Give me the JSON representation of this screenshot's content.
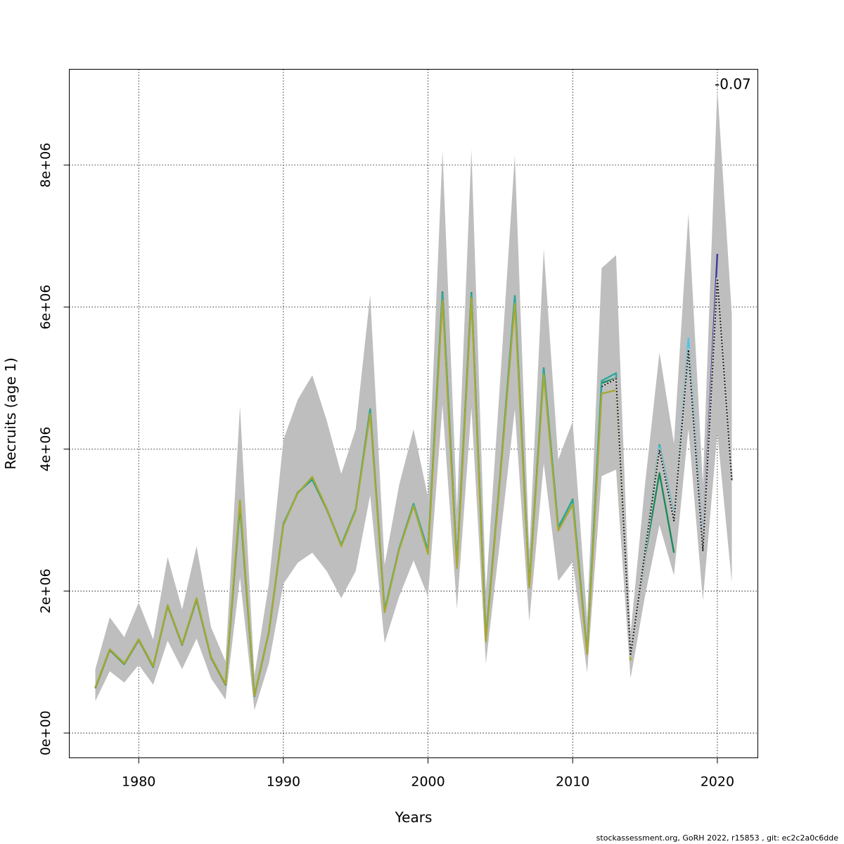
{
  "chart_data": {
    "type": "line",
    "xlabel": "Years",
    "ylabel": "Recruits (age 1)",
    "xlim": [
      1975.2,
      2022.8
    ],
    "ylim": [
      -350000,
      9350000
    ],
    "x_ticks": [
      1980,
      1990,
      2000,
      2010,
      2020
    ],
    "y_ticks": [
      0,
      2000000,
      4000000,
      6000000,
      8000000
    ],
    "y_tick_labels": [
      "0e+00",
      "2e+06",
      "4e+06",
      "6e+06",
      "8e+06"
    ],
    "grid": true,
    "annotation": {
      "text": "-0.07",
      "x": 2020,
      "y": 9150000
    },
    "band": {
      "x": [
        1977,
        1978,
        1979,
        1980,
        1981,
        1982,
        1983,
        1984,
        1985,
        1986,
        1987,
        1988,
        1989,
        1990,
        1991,
        1992,
        1993,
        1994,
        1995,
        1996,
        1997,
        1998,
        1999,
        2000,
        2001,
        2002,
        2003,
        2004,
        2005,
        2006,
        2007,
        2008,
        2009,
        2010,
        2011,
        2012,
        2013,
        2014,
        2015,
        2016,
        2017,
        2018,
        2019,
        2020,
        2021
      ],
      "upper": [
        900000,
        1630000,
        1350000,
        1840000,
        1320000,
        2480000,
        1740000,
        2630000,
        1490000,
        1010000,
        4600000,
        810000,
        2110000,
        4130000,
        4700000,
        5040000,
        4400000,
        3650000,
        4280000,
        6170000,
        2370000,
        3490000,
        4280000,
        3320000,
        8200000,
        3150000,
        8220000,
        1990000,
        5000000,
        8140000,
        2560000,
        6820000,
        3850000,
        4390000,
        1600000,
        6550000,
        6730000,
        1400000,
        3500000,
        5360000,
        4080000,
        7320000,
        3510000,
        9080000,
        5900000
      ],
      "lower": [
        450000,
        870000,
        710000,
        960000,
        680000,
        1300000,
        900000,
        1330000,
        770000,
        470000,
        2190000,
        320000,
        980000,
        2100000,
        2400000,
        2540000,
        2280000,
        1900000,
        2280000,
        3350000,
        1270000,
        1920000,
        2430000,
        1920000,
        4620000,
        1750000,
        4580000,
        980000,
        2750000,
        4560000,
        1570000,
        3800000,
        2140000,
        2410000,
        850000,
        3620000,
        3710000,
        770000,
        1930000,
        2930000,
        2220000,
        4290000,
        1870000,
        4230000,
        2120000
      ]
    },
    "series": [
      {
        "color": "#1b8a5a",
        "x": [
          1977,
          1978,
          1979,
          1980,
          1981,
          1982,
          1983,
          1984,
          1985,
          1986,
          1987,
          1988,
          1989,
          1990,
          1991,
          1992,
          1993,
          1994,
          1995,
          1996,
          1997,
          1998,
          1999,
          2000,
          2001,
          2002,
          2003,
          2004,
          2005,
          2006,
          2007,
          2008,
          2009,
          2010,
          2011,
          2012,
          2013,
          2014,
          2015,
          2016,
          2017
        ],
        "y": [
          630000,
          1170000,
          970000,
          1310000,
          930000,
          1790000,
          1240000,
          1880000,
          1060000,
          680000,
          3200000,
          520000,
          1420000,
          2930000,
          3390000,
          3570000,
          3150000,
          2640000,
          3140000,
          4560000,
          1720000,
          2590000,
          3220000,
          2560000,
          6210000,
          2370000,
          6200000,
          1330000,
          3650000,
          6150000,
          2070000,
          5140000,
          2890000,
          3290000,
          1130000,
          4930000,
          5000000,
          1080000,
          2490000,
          3660000,
          2540000
        ]
      },
      {
        "color": "#2aa8a0",
        "x": [
          1977,
          1978,
          1979,
          1980,
          1981,
          1982,
          1983,
          1984,
          1985,
          1986,
          1987,
          1988,
          1989,
          1990,
          1991,
          1992,
          1993,
          1994,
          1995,
          1996,
          1997,
          1998,
          1999,
          2000,
          2001,
          2002,
          2003,
          2004,
          2005,
          2006,
          2007,
          2008,
          2009,
          2010,
          2011,
          2012,
          2013,
          2014,
          2015,
          2016,
          2017,
          2018
        ],
        "y": [
          640000,
          1180000,
          980000,
          1320000,
          940000,
          1800000,
          1250000,
          1890000,
          1070000,
          690000,
          3220000,
          530000,
          1430000,
          2950000,
          3380000,
          3580000,
          3160000,
          2650000,
          3150000,
          4550000,
          1730000,
          2600000,
          3230000,
          2570000,
          6190000,
          2380000,
          6180000,
          1340000,
          3660000,
          6160000,
          2080000,
          5130000,
          2900000,
          3280000,
          1140000,
          4960000,
          5070000,
          1100000,
          2600000,
          4060000,
          3060000,
          5310000
        ]
      },
      {
        "color": "#4fc3e8",
        "x": [
          2015,
          2016,
          2017,
          2018,
          2019
        ],
        "y": [
          2550000,
          4030000,
          3040000,
          5560000,
          2700000
        ]
      },
      {
        "color": "#3a3aa0",
        "x": [
          2016,
          2017,
          2018,
          2019,
          2020
        ],
        "y": [
          3980000,
          3000000,
          5400000,
          2650000,
          6750000
        ]
      },
      {
        "color": "#a8a830",
        "x": [
          1977,
          1978,
          1979,
          1980,
          1981,
          1982,
          1983,
          1984,
          1985,
          1986,
          1987,
          1988,
          1989,
          1990,
          1991,
          1992,
          1993,
          1994,
          1995,
          1996,
          1997,
          1998,
          1999,
          2000,
          2001,
          2002,
          2003,
          2004,
          2005,
          2006,
          2007,
          2008,
          2009,
          2010,
          2011,
          2012,
          2013,
          2014
        ],
        "y": [
          640000,
          1180000,
          980000,
          1320000,
          940000,
          1800000,
          1250000,
          1900000,
          1070000,
          690000,
          3280000,
          530000,
          1420000,
          2930000,
          3380000,
          3610000,
          3160000,
          2630000,
          3130000,
          4500000,
          1700000,
          2580000,
          3200000,
          2520000,
          6100000,
          2320000,
          6130000,
          1290000,
          3620000,
          6050000,
          2050000,
          5050000,
          2850000,
          3220000,
          1110000,
          4780000,
          4830000,
          1020000
        ]
      },
      {
        "color": "#222222",
        "dashed": true,
        "x": [
          2012,
          2013,
          2014,
          2015,
          2016,
          2017,
          2018,
          2019,
          2020,
          2021
        ],
        "y": [
          4880000,
          4990000,
          1090000,
          2550000,
          3990000,
          2990000,
          5400000,
          2560000,
          6400000,
          3550000
        ]
      }
    ]
  },
  "footer": "stockassessment.org, GoRH  2022, r15853 , git: ec2c2a0c6dde"
}
